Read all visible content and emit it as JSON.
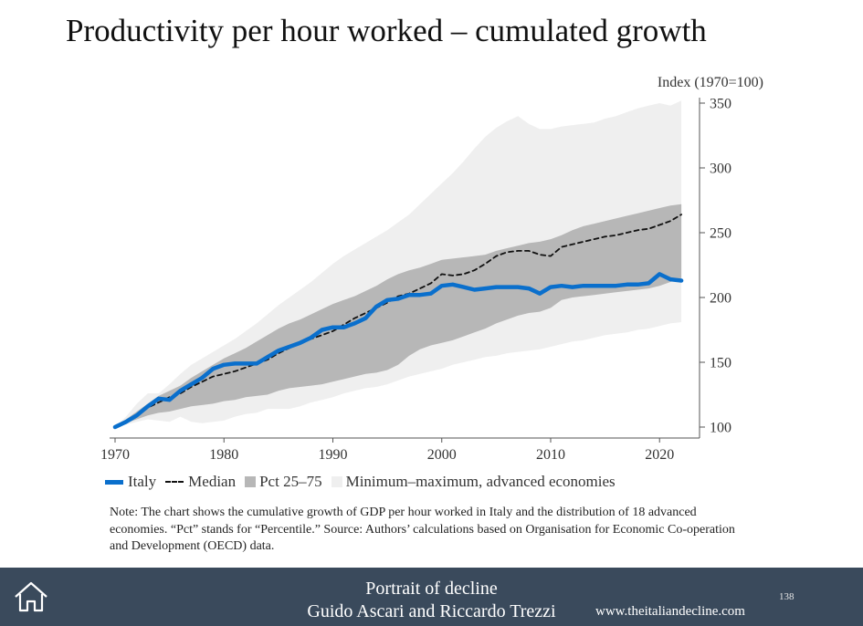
{
  "slide": {
    "title": "Productivity per hour worked – cumulated growth",
    "note": "Note: The chart shows the cumulative growth of GDP per hour worked in Italy and the distribution of 18 advanced economies. “Pct” stands for “Percentile.” Source: Authors’ calculations based on Organisation for Economic Co-operation and Development (OECD) data."
  },
  "footer": {
    "title": "Portrait of decline",
    "authors": "Guido Ascari and Riccardo Trezzi",
    "page_number": "138",
    "website": "www.theitaliandecline.com",
    "background_color": "#3a4a5c",
    "home_icon": "home-icon"
  },
  "chart_data": {
    "type": "line",
    "title": "Productivity per hour worked – cumulated growth",
    "ylabel": "Index (1970=100)",
    "xlabel": "",
    "xlim": [
      1970,
      2023
    ],
    "ylim": [
      100,
      350
    ],
    "x_ticks": [
      1970,
      1980,
      1990,
      2000,
      2010,
      2020
    ],
    "y_ticks": [
      100,
      150,
      200,
      250,
      300,
      350
    ],
    "y_axis_side": "right",
    "grid": false,
    "legend_position": "bottom",
    "x": [
      1970,
      1971,
      1972,
      1973,
      1974,
      1975,
      1976,
      1977,
      1978,
      1979,
      1980,
      1981,
      1982,
      1983,
      1984,
      1985,
      1986,
      1987,
      1988,
      1989,
      1990,
      1991,
      1992,
      1993,
      1994,
      1995,
      1996,
      1997,
      1998,
      1999,
      2000,
      2001,
      2002,
      2003,
      2004,
      2005,
      2006,
      2007,
      2008,
      2009,
      2010,
      2011,
      2012,
      2013,
      2014,
      2015,
      2016,
      2017,
      2018,
      2019,
      2020,
      2021,
      2022
    ],
    "series": [
      {
        "name": "Italy",
        "kind": "line",
        "color": "#0a6fcc",
        "values": [
          100,
          104,
          109,
          116,
          122,
          121,
          128,
          133,
          138,
          145,
          148,
          149,
          149,
          149,
          154,
          159,
          162,
          165,
          169,
          175,
          177,
          177,
          180,
          184,
          193,
          198,
          199,
          202,
          202,
          203,
          209,
          210,
          208,
          206,
          207,
          208,
          208,
          208,
          207,
          203,
          208,
          209,
          208,
          209,
          209,
          209,
          209,
          210,
          210,
          211,
          218,
          214,
          213
        ]
      },
      {
        "name": "Median",
        "kind": "dashed-line",
        "color": "#111111",
        "values": [
          100,
          104,
          109,
          115,
          119,
          123,
          126,
          131,
          135,
          139,
          141,
          143,
          146,
          149,
          152,
          157,
          161,
          165,
          168,
          171,
          174,
          179,
          184,
          188,
          192,
          196,
          201,
          203,
          207,
          211,
          218,
          217,
          218,
          221,
          226,
          232,
          235,
          236,
          236,
          233,
          232,
          239,
          241,
          243,
          245,
          247,
          248,
          250,
          252,
          253,
          256,
          259,
          264
        ]
      },
      {
        "name": "Pct 25–75",
        "kind": "band",
        "color": "#b7b7b7",
        "lower": [
          100,
          103,
          106,
          109,
          111,
          112,
          114,
          116,
          117,
          118,
          120,
          121,
          123,
          124,
          125,
          128,
          130,
          131,
          132,
          133,
          135,
          137,
          139,
          141,
          142,
          144,
          148,
          155,
          160,
          163,
          165,
          167,
          170,
          173,
          176,
          180,
          183,
          186,
          188,
          189,
          192,
          198,
          200,
          201,
          202,
          203,
          204,
          205,
          206,
          207,
          209,
          212,
          215
        ],
        "upper": [
          100,
          106,
          112,
          118,
          124,
          128,
          132,
          138,
          143,
          148,
          153,
          157,
          161,
          166,
          171,
          176,
          180,
          183,
          187,
          191,
          195,
          198,
          201,
          205,
          209,
          214,
          218,
          221,
          223,
          226,
          229,
          230,
          231,
          232,
          233,
          236,
          238,
          240,
          242,
          243,
          245,
          248,
          252,
          255,
          257,
          259,
          261,
          263,
          265,
          267,
          269,
          271,
          272
        ]
      },
      {
        "name": "Minimum–maximum, advanced economies",
        "kind": "band",
        "color": "#efefef",
        "lower": [
          100,
          102,
          104,
          106,
          105,
          104,
          108,
          104,
          103,
          104,
          105,
          108,
          110,
          111,
          114,
          114,
          114,
          116,
          119,
          121,
          123,
          126,
          128,
          130,
          131,
          133,
          136,
          139,
          141,
          143,
          145,
          148,
          150,
          152,
          154,
          155,
          157,
          158,
          159,
          160,
          162,
          164,
          166,
          167,
          169,
          171,
          172,
          173,
          175,
          176,
          178,
          180,
          181
        ],
        "upper": [
          100,
          108,
          118,
          126,
          126,
          133,
          141,
          148,
          153,
          158,
          163,
          168,
          174,
          180,
          187,
          194,
          200,
          206,
          212,
          219,
          226,
          232,
          237,
          242,
          247,
          252,
          258,
          264,
          272,
          280,
          288,
          296,
          305,
          315,
          324,
          331,
          336,
          340,
          334,
          330,
          330,
          332,
          333,
          334,
          335,
          338,
          340,
          343,
          346,
          348,
          350,
          348,
          352
        ]
      }
    ]
  }
}
